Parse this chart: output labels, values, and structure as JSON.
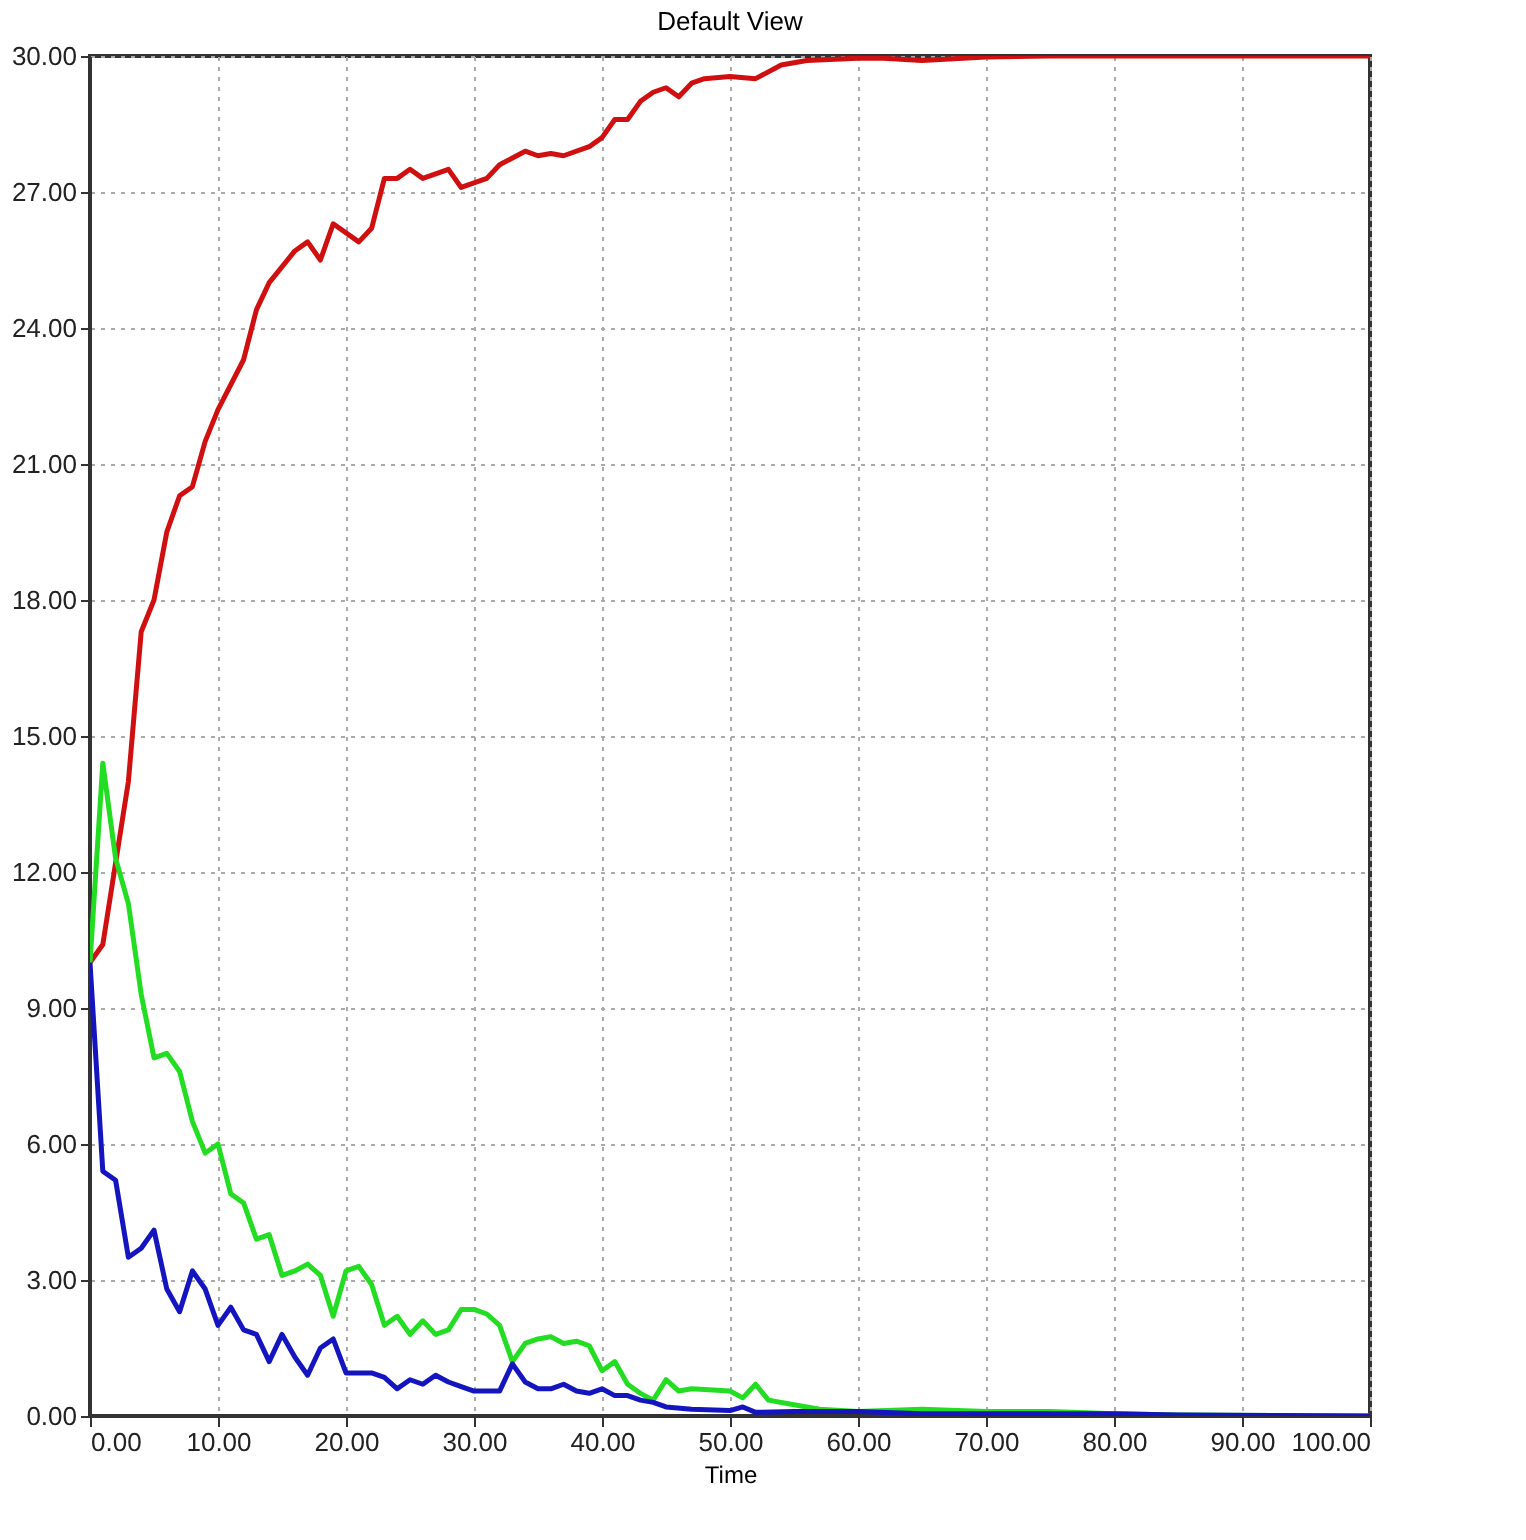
{
  "chart_data": {
    "type": "line",
    "title": "Default View",
    "xlabel": "Time",
    "legend": false,
    "grid": true,
    "line_style": "solid",
    "xlim": [
      0,
      100
    ],
    "ylim": [
      0,
      30
    ],
    "xticks": [
      {
        "value": 0,
        "label": "0.00"
      },
      {
        "value": 10,
        "label": "10.00"
      },
      {
        "value": 20,
        "label": "20.00"
      },
      {
        "value": 30,
        "label": "30.00"
      },
      {
        "value": 40,
        "label": "40.00"
      },
      {
        "value": 50,
        "label": "50.00"
      },
      {
        "value": 60,
        "label": "60.00"
      },
      {
        "value": 70,
        "label": "70.00"
      },
      {
        "value": 80,
        "label": "80.00"
      },
      {
        "value": 90,
        "label": "90.00"
      },
      {
        "value": 100,
        "label": "100.00"
      }
    ],
    "yticks": [
      {
        "value": 0,
        "label": "0.00"
      },
      {
        "value": 3,
        "label": "3.00"
      },
      {
        "value": 6,
        "label": "6.00"
      },
      {
        "value": 9,
        "label": "9.00"
      },
      {
        "value": 12,
        "label": "12.00"
      },
      {
        "value": 15,
        "label": "15.00"
      },
      {
        "value": 18,
        "label": "18.00"
      },
      {
        "value": 21,
        "label": "21.00"
      },
      {
        "value": 24,
        "label": "24.00"
      },
      {
        "value": 27,
        "label": "27.00"
      },
      {
        "value": 30,
        "label": "30.00"
      }
    ],
    "series": [
      {
        "color": "#d01010",
        "x": [
          0,
          1,
          3,
          4,
          5,
          6,
          7,
          8,
          9,
          10,
          12,
          13,
          14,
          16,
          17,
          18,
          19,
          21,
          22,
          23,
          24,
          25,
          26,
          28,
          29,
          31,
          32,
          34,
          35,
          36,
          37,
          39,
          40,
          41,
          42,
          43,
          44,
          45,
          46,
          47,
          48,
          50,
          52,
          54,
          56,
          60,
          62,
          65,
          70,
          75,
          100
        ],
        "values": [
          10,
          10.4,
          14,
          17.3,
          18,
          19.5,
          20.3,
          20.5,
          21.5,
          22.2,
          23.3,
          24.4,
          25,
          25.7,
          25.9,
          25.5,
          26.3,
          25.9,
          26.2,
          27.3,
          27.3,
          27.5,
          27.3,
          27.5,
          27.1,
          27.3,
          27.6,
          27.9,
          27.8,
          27.85,
          27.8,
          28,
          28.2,
          28.6,
          28.6,
          29,
          29.2,
          29.3,
          29.1,
          29.4,
          29.5,
          29.55,
          29.5,
          29.8,
          29.9,
          29.95,
          29.95,
          29.9,
          29.98,
          30,
          30
        ]
      },
      {
        "color": "#22dd22",
        "x": [
          0,
          1,
          2,
          3,
          4,
          5,
          6,
          7,
          8,
          9,
          10,
          11,
          12,
          13,
          14,
          15,
          16,
          17,
          18,
          19,
          20,
          21,
          22,
          23,
          24,
          25,
          26,
          27,
          28,
          29,
          30,
          31,
          32,
          33,
          34,
          35,
          36,
          37,
          38,
          39,
          40,
          41,
          42,
          43,
          44,
          45,
          46,
          47,
          50,
          51,
          52,
          53,
          55,
          57,
          60,
          65,
          70,
          75,
          80,
          85,
          100
        ],
        "values": [
          10,
          14.4,
          12.3,
          11.3,
          9.3,
          7.9,
          8,
          7.6,
          6.5,
          5.8,
          6,
          4.9,
          4.7,
          3.9,
          4,
          3.1,
          3.2,
          3.35,
          3.1,
          2.2,
          3.2,
          3.3,
          2.9,
          2,
          2.2,
          1.8,
          2.1,
          1.8,
          1.9,
          2.35,
          2.35,
          2.25,
          2,
          1.2,
          1.6,
          1.7,
          1.75,
          1.6,
          1.65,
          1.55,
          1,
          1.2,
          0.7,
          0.5,
          0.35,
          0.8,
          0.55,
          0.6,
          0.55,
          0.4,
          0.7,
          0.35,
          0.25,
          0.15,
          0.1,
          0.15,
          0.1,
          0.1,
          0.05,
          0.02,
          0
        ]
      },
      {
        "color": "#1515c0",
        "x": [
          0,
          1,
          2,
          3,
          4,
          5,
          6,
          7,
          8,
          9,
          10,
          11,
          12,
          13,
          14,
          15,
          16,
          17,
          18,
          19,
          20,
          21,
          22,
          23,
          24,
          25,
          26,
          27,
          28,
          29,
          30,
          32,
          33,
          34,
          35,
          36,
          37,
          38,
          39,
          40,
          41,
          42,
          43,
          44,
          45,
          47,
          50,
          51,
          52,
          55,
          60,
          65,
          70,
          80,
          85,
          100
        ],
        "values": [
          10,
          5.4,
          5.2,
          3.5,
          3.7,
          4.1,
          2.8,
          2.3,
          3.2,
          2.8,
          2,
          2.4,
          1.9,
          1.8,
          1.2,
          1.8,
          1.3,
          0.9,
          1.5,
          1.7,
          0.95,
          0.95,
          0.95,
          0.85,
          0.6,
          0.8,
          0.7,
          0.9,
          0.75,
          0.65,
          0.55,
          0.55,
          1.15,
          0.75,
          0.6,
          0.6,
          0.7,
          0.55,
          0.5,
          0.6,
          0.45,
          0.45,
          0.35,
          0.3,
          0.2,
          0.15,
          0.12,
          0.2,
          0.08,
          0.1,
          0.1,
          0.05,
          0.05,
          0.05,
          0.02,
          0
        ]
      }
    ]
  }
}
